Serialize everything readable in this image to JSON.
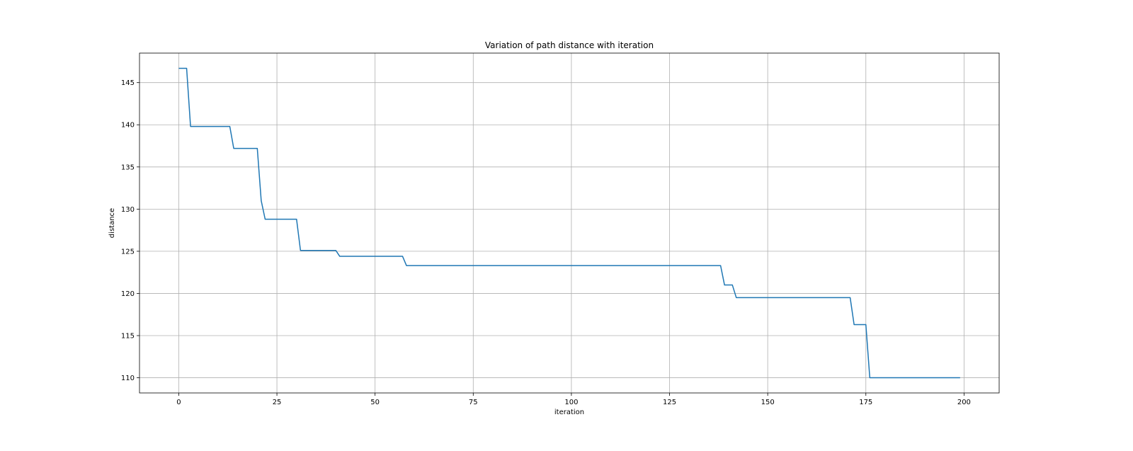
{
  "chart_data": {
    "type": "line",
    "title": "Variation of path distance with iteration",
    "xlabel": "iteration",
    "ylabel": "distance",
    "xlim": [
      -10,
      208.95
    ],
    "ylim": [
      108.2,
      148.5
    ],
    "xticks": [
      0,
      25,
      50,
      75,
      100,
      125,
      150,
      175,
      200
    ],
    "yticks": [
      110,
      115,
      120,
      125,
      130,
      135,
      140,
      145
    ],
    "grid": true,
    "legend": null,
    "colors": {
      "series": "#1f77b4"
    },
    "series": [
      {
        "points": [
          [
            0,
            146.7
          ],
          [
            2,
            146.7
          ],
          [
            3,
            139.8
          ],
          [
            13,
            139.8
          ],
          [
            14,
            137.2
          ],
          [
            20,
            137.2
          ],
          [
            21,
            131.0
          ],
          [
            22,
            128.8
          ],
          [
            30,
            128.8
          ],
          [
            31,
            125.1
          ],
          [
            40,
            125.1
          ],
          [
            41,
            124.4
          ],
          [
            57,
            124.4
          ],
          [
            58,
            123.3
          ],
          [
            138,
            123.3
          ],
          [
            139,
            121.0
          ],
          [
            141,
            121.0
          ],
          [
            142,
            119.5
          ],
          [
            171,
            119.5
          ],
          [
            172,
            116.3
          ],
          [
            175,
            116.3
          ],
          [
            176,
            110.0
          ],
          [
            199,
            110.0
          ]
        ]
      }
    ]
  }
}
